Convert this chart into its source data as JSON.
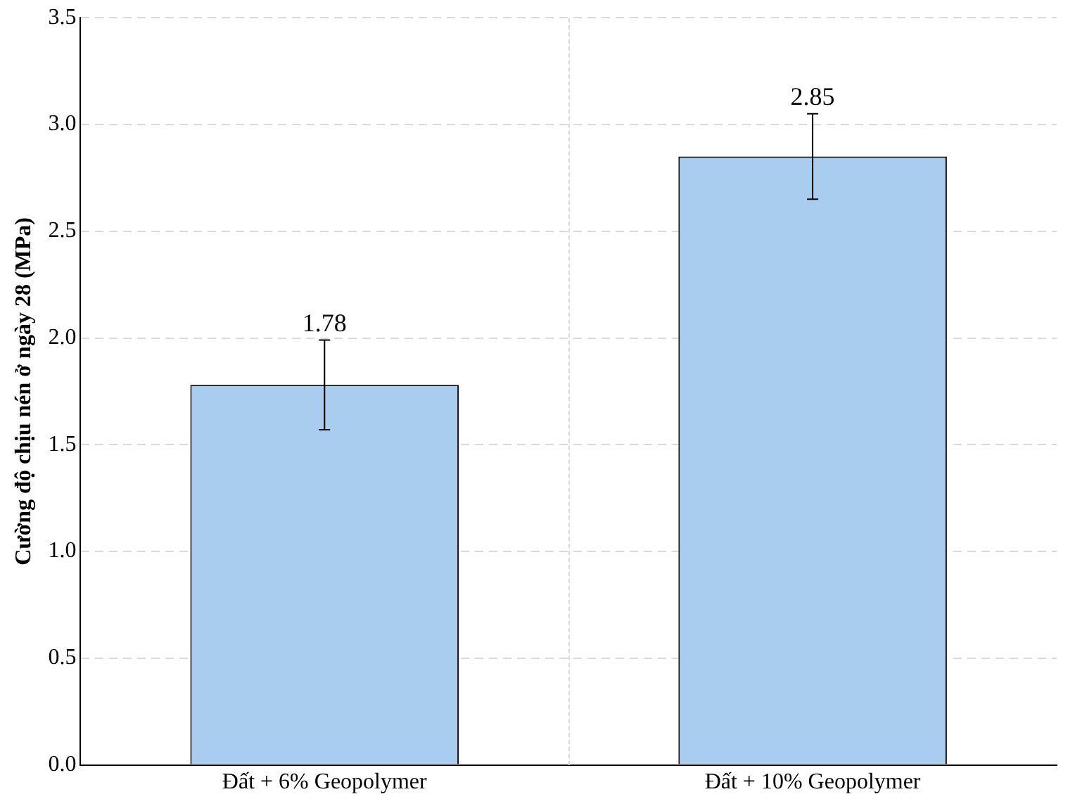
{
  "chart_data": {
    "type": "bar",
    "ylabel": "Cường độ chịu nén ở ngày 28 (MPa)",
    "categories": [
      "Đất + 6% Geopolymer",
      "Đất + 10% Geopolymer"
    ],
    "values": [
      1.78,
      2.85
    ],
    "errors": [
      0.21,
      0.2
    ],
    "color": "#a8cdee",
    "ylim": [
      0,
      3.5
    ],
    "yticks": [
      {
        "value": 0,
        "label": "0.0"
      },
      0.5,
      {
        "value": 1,
        "label": "1.0"
      },
      1.5,
      {
        "value": 2,
        "label": "2.0"
      },
      2.5,
      {
        "value": 3,
        "label": "3.0"
      },
      3.5
    ],
    "grid": "y",
    "data_labels": true,
    "legend": false
  }
}
